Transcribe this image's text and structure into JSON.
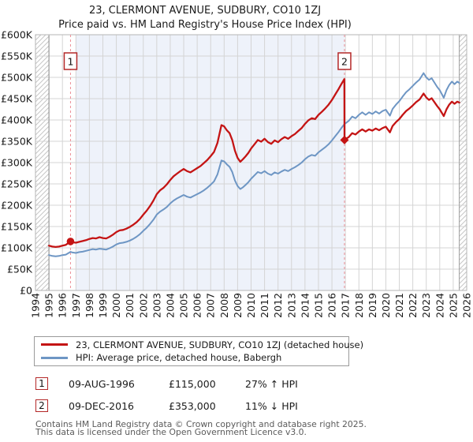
{
  "page": {
    "title": "23, CLERMONT AVENUE, SUDBURY, CO10 1ZJ",
    "subtitle": "Price paid vs. HM Land Registry's House Price Index (HPI)"
  },
  "legend": {
    "items": [
      {
        "id": "price-paid",
        "label": "23, CLERMONT AVENUE, SUDBURY, CO10 1ZJ (detached house)",
        "color": "#c41414"
      },
      {
        "id": "hpi",
        "label": "HPI: Average price, detached house, Babergh",
        "color": "#6e96c4"
      }
    ]
  },
  "sales": [
    {
      "n": "1",
      "date": "09-AUG-1996",
      "price": "£115,000",
      "hpi_diff": "27% ↑ HPI"
    },
    {
      "n": "2",
      "date": "09-DEC-2016",
      "price": "£353,000",
      "hpi_diff": "11% ↓ HPI"
    }
  ],
  "footer": {
    "line1": "Contains HM Land Registry data © Crown copyright and database right 2025.",
    "line2": "This data is licensed under the Open Government Licence v3.0."
  },
  "chart_data": {
    "type": "line",
    "title": "23, CLERMONT AVENUE, SUDBURY, CO10 1ZJ",
    "subtitle": "Price paid vs. HM Land Registry's House Price Index (HPI)",
    "unit": "GBP thousands",
    "x_axis": {
      "min": 1994,
      "max": 2026,
      "ticks": [
        "1994",
        "1995",
        "1996",
        "1997",
        "1998",
        "1999",
        "2000",
        "2001",
        "2002",
        "2003",
        "2004",
        "2005",
        "2006",
        "2007",
        "2008",
        "2009",
        "2010",
        "2011",
        "2012",
        "2013",
        "2014",
        "2015",
        "2016",
        "2017",
        "2018",
        "2019",
        "2020",
        "2021",
        "2022",
        "2023",
        "2024",
        "2025",
        "2026"
      ]
    },
    "y_axis": {
      "min": 0,
      "max": 600,
      "step": 50,
      "ticks": [
        {
          "v": 0,
          "label": "£0"
        },
        {
          "v": 50,
          "label": "£50K"
        },
        {
          "v": 100,
          "label": "£100K"
        },
        {
          "v": 150,
          "label": "£150K"
        },
        {
          "v": 200,
          "label": "£200K"
        },
        {
          "v": 250,
          "label": "£250K"
        },
        {
          "v": 300,
          "label": "£300K"
        },
        {
          "v": 350,
          "label": "£350K"
        },
        {
          "v": 400,
          "label": "£400K"
        },
        {
          "v": 450,
          "label": "£450K"
        },
        {
          "v": 500,
          "label": "£500K"
        },
        {
          "v": 550,
          "label": "£550K"
        },
        {
          "v": 600,
          "label": "£600K"
        }
      ]
    },
    "data_start_year": 1995,
    "data_end_year": 2025.45,
    "shaded_span_years": [
      1997,
      2016.93
    ],
    "no_data_spans_years": [
      [
        1994,
        1995
      ],
      [
        2025.45,
        2026.95
      ]
    ],
    "sale_markers": [
      {
        "n": "1",
        "year": 1996.6,
        "value": 115,
        "shape": "circle",
        "date": "09-AUG-1996",
        "price_gbp": 115000,
        "vs_hpi": "27% above"
      },
      {
        "n": "2",
        "year": 2016.93,
        "value": 353,
        "shape": "diamond",
        "date": "09-DEC-2016",
        "price_gbp": 353000,
        "vs_hpi": "11% below"
      }
    ],
    "style": {
      "grid": "#d4d4d4",
      "border": "#b6b6b6",
      "tint": "#eef2fa",
      "hatch": "#c6c6c6",
      "dash": "#ec8f96",
      "start_line": "#8c8c8c",
      "end_line": "#9c9c9c",
      "marker": "#c41414",
      "marker_box": "#b42828",
      "axis_text": "#1a1a1a"
    },
    "series": [
      {
        "id": "hpi",
        "name": "HPI: Average price, detached house, Babergh",
        "color": "#6e96c4",
        "width": 2,
        "points": [
          [
            1995.0,
            83
          ],
          [
            1995.25,
            81
          ],
          [
            1995.5,
            80
          ],
          [
            1995.75,
            81
          ],
          [
            1996.0,
            83
          ],
          [
            1996.25,
            84
          ],
          [
            1996.6,
            90.5
          ],
          [
            1996.75,
            89
          ],
          [
            1997.0,
            88
          ],
          [
            1997.25,
            90
          ],
          [
            1997.5,
            91
          ],
          [
            1997.75,
            93
          ],
          [
            1998.0,
            95
          ],
          [
            1998.25,
            97
          ],
          [
            1998.5,
            96
          ],
          [
            1998.75,
            98
          ],
          [
            1999.0,
            97
          ],
          [
            1999.25,
            96
          ],
          [
            1999.5,
            99
          ],
          [
            1999.75,
            103
          ],
          [
            2000.0,
            108
          ],
          [
            2000.25,
            111
          ],
          [
            2000.5,
            112
          ],
          [
            2000.75,
            114
          ],
          [
            2001.0,
            117
          ],
          [
            2001.25,
            121
          ],
          [
            2001.5,
            126
          ],
          [
            2001.75,
            132
          ],
          [
            2002.0,
            140
          ],
          [
            2002.25,
            147
          ],
          [
            2002.5,
            156
          ],
          [
            2002.75,
            166
          ],
          [
            2003.0,
            178
          ],
          [
            2003.25,
            185
          ],
          [
            2003.5,
            190
          ],
          [
            2003.75,
            196
          ],
          [
            2004.0,
            204
          ],
          [
            2004.25,
            211
          ],
          [
            2004.5,
            216
          ],
          [
            2004.75,
            220
          ],
          [
            2005.0,
            224
          ],
          [
            2005.25,
            220
          ],
          [
            2005.5,
            218
          ],
          [
            2005.75,
            222
          ],
          [
            2006.0,
            226
          ],
          [
            2006.25,
            230
          ],
          [
            2006.5,
            235
          ],
          [
            2006.75,
            241
          ],
          [
            2007.0,
            248
          ],
          [
            2007.25,
            256
          ],
          [
            2007.5,
            272
          ],
          [
            2007.8,
            305
          ],
          [
            2008.0,
            303
          ],
          [
            2008.2,
            296
          ],
          [
            2008.4,
            290
          ],
          [
            2008.6,
            278
          ],
          [
            2008.8,
            258
          ],
          [
            2009.0,
            245
          ],
          [
            2009.2,
            238
          ],
          [
            2009.4,
            242
          ],
          [
            2009.6,
            248
          ],
          [
            2009.8,
            254
          ],
          [
            2010.0,
            262
          ],
          [
            2010.25,
            270
          ],
          [
            2010.5,
            278
          ],
          [
            2010.75,
            275
          ],
          [
            2011.0,
            280
          ],
          [
            2011.25,
            274
          ],
          [
            2011.5,
            271
          ],
          [
            2011.75,
            277
          ],
          [
            2012.0,
            274
          ],
          [
            2012.25,
            279
          ],
          [
            2012.5,
            283
          ],
          [
            2012.75,
            280
          ],
          [
            2013.0,
            285
          ],
          [
            2013.25,
            289
          ],
          [
            2013.5,
            294
          ],
          [
            2013.75,
            300
          ],
          [
            2014.0,
            308
          ],
          [
            2014.25,
            314
          ],
          [
            2014.5,
            318
          ],
          [
            2014.75,
            316
          ],
          [
            2015.0,
            324
          ],
          [
            2015.25,
            330
          ],
          [
            2015.5,
            336
          ],
          [
            2015.75,
            343
          ],
          [
            2016.0,
            352
          ],
          [
            2016.25,
            362
          ],
          [
            2016.5,
            372
          ],
          [
            2016.7,
            381
          ],
          [
            2016.92,
            390
          ],
          [
            2017.0,
            392
          ],
          [
            2017.25,
            398
          ],
          [
            2017.5,
            408
          ],
          [
            2017.75,
            404
          ],
          [
            2018.0,
            412
          ],
          [
            2018.25,
            418
          ],
          [
            2018.5,
            412
          ],
          [
            2018.75,
            418
          ],
          [
            2019.0,
            414
          ],
          [
            2019.25,
            420
          ],
          [
            2019.5,
            415
          ],
          [
            2019.75,
            421
          ],
          [
            2020.0,
            424
          ],
          [
            2020.3,
            410
          ],
          [
            2020.5,
            426
          ],
          [
            2020.75,
            436
          ],
          [
            2021.0,
            444
          ],
          [
            2021.25,
            455
          ],
          [
            2021.5,
            465
          ],
          [
            2021.75,
            472
          ],
          [
            2022.0,
            480
          ],
          [
            2022.25,
            488
          ],
          [
            2022.5,
            495
          ],
          [
            2022.8,
            510
          ],
          [
            2023.0,
            500
          ],
          [
            2023.2,
            494
          ],
          [
            2023.4,
            498
          ],
          [
            2023.6,
            488
          ],
          [
            2023.8,
            478
          ],
          [
            2024.0,
            470
          ],
          [
            2024.3,
            452
          ],
          [
            2024.5,
            470
          ],
          [
            2024.7,
            482
          ],
          [
            2024.9,
            490
          ],
          [
            2025.1,
            484
          ],
          [
            2025.3,
            490
          ],
          [
            2025.45,
            487
          ]
        ]
      },
      {
        "id": "price-paid",
        "name": "23, CLERMONT AVENUE, SUDBURY, CO10 1ZJ (detached house)",
        "color": "#c41414",
        "width": 2.3,
        "points": [
          [
            1995.0,
            105
          ],
          [
            1995.25,
            103
          ],
          [
            1995.5,
            102
          ],
          [
            1995.75,
            103
          ],
          [
            1996.0,
            105
          ],
          [
            1996.25,
            107
          ],
          [
            1996.6,
            115
          ],
          [
            1996.75,
            113
          ],
          [
            1997.0,
            112
          ],
          [
            1997.25,
            114
          ],
          [
            1997.5,
            116
          ],
          [
            1997.75,
            118
          ],
          [
            1998.0,
            121
          ],
          [
            1998.25,
            123
          ],
          [
            1998.5,
            122
          ],
          [
            1998.75,
            125
          ],
          [
            1999.0,
            123
          ],
          [
            1999.25,
            122
          ],
          [
            1999.5,
            126
          ],
          [
            1999.75,
            131
          ],
          [
            2000.0,
            137
          ],
          [
            2000.25,
            141
          ],
          [
            2000.5,
            142
          ],
          [
            2000.75,
            145
          ],
          [
            2001.0,
            149
          ],
          [
            2001.25,
            154
          ],
          [
            2001.5,
            160
          ],
          [
            2001.75,
            168
          ],
          [
            2002.0,
            178
          ],
          [
            2002.25,
            187
          ],
          [
            2002.5,
            198
          ],
          [
            2002.75,
            211
          ],
          [
            2003.0,
            226
          ],
          [
            2003.25,
            235
          ],
          [
            2003.5,
            241
          ],
          [
            2003.75,
            249
          ],
          [
            2004.0,
            259
          ],
          [
            2004.25,
            268
          ],
          [
            2004.5,
            274
          ],
          [
            2004.75,
            280
          ],
          [
            2005.0,
            285
          ],
          [
            2005.25,
            280
          ],
          [
            2005.5,
            277
          ],
          [
            2005.75,
            282
          ],
          [
            2006.0,
            287
          ],
          [
            2006.25,
            292
          ],
          [
            2006.5,
            299
          ],
          [
            2006.75,
            306
          ],
          [
            2007.0,
            315
          ],
          [
            2007.25,
            325
          ],
          [
            2007.5,
            346
          ],
          [
            2007.8,
            388
          ],
          [
            2008.0,
            385
          ],
          [
            2008.2,
            376
          ],
          [
            2008.4,
            369
          ],
          [
            2008.6,
            353
          ],
          [
            2008.8,
            328
          ],
          [
            2009.0,
            311
          ],
          [
            2009.2,
            302
          ],
          [
            2009.4,
            308
          ],
          [
            2009.6,
            315
          ],
          [
            2009.8,
            323
          ],
          [
            2010.0,
            333
          ],
          [
            2010.25,
            343
          ],
          [
            2010.5,
            353
          ],
          [
            2010.75,
            349
          ],
          [
            2011.0,
            356
          ],
          [
            2011.25,
            348
          ],
          [
            2011.5,
            344
          ],
          [
            2011.75,
            352
          ],
          [
            2012.0,
            348
          ],
          [
            2012.25,
            355
          ],
          [
            2012.5,
            360
          ],
          [
            2012.75,
            356
          ],
          [
            2013.0,
            362
          ],
          [
            2013.25,
            367
          ],
          [
            2013.5,
            374
          ],
          [
            2013.75,
            381
          ],
          [
            2014.0,
            391
          ],
          [
            2014.25,
            399
          ],
          [
            2014.5,
            404
          ],
          [
            2014.75,
            402
          ],
          [
            2015.0,
            412
          ],
          [
            2015.25,
            419
          ],
          [
            2015.5,
            427
          ],
          [
            2015.75,
            436
          ],
          [
            2016.0,
            447
          ],
          [
            2016.25,
            460
          ],
          [
            2016.5,
            473
          ],
          [
            2016.7,
            484
          ],
          [
            2016.92,
            496
          ],
          [
            2016.93,
            353
          ],
          [
            2017.0,
            355
          ],
          [
            2017.25,
            360
          ],
          [
            2017.5,
            369
          ],
          [
            2017.75,
            366
          ],
          [
            2018.0,
            373
          ],
          [
            2018.25,
            378
          ],
          [
            2018.5,
            373
          ],
          [
            2018.75,
            378
          ],
          [
            2019.0,
            375
          ],
          [
            2019.25,
            380
          ],
          [
            2019.5,
            376
          ],
          [
            2019.75,
            381
          ],
          [
            2020.0,
            384
          ],
          [
            2020.3,
            371
          ],
          [
            2020.5,
            386
          ],
          [
            2020.75,
            395
          ],
          [
            2021.0,
            402
          ],
          [
            2021.25,
            412
          ],
          [
            2021.5,
            421
          ],
          [
            2021.75,
            427
          ],
          [
            2022.0,
            434
          ],
          [
            2022.25,
            442
          ],
          [
            2022.5,
            448
          ],
          [
            2022.8,
            462
          ],
          [
            2023.0,
            453
          ],
          [
            2023.2,
            447
          ],
          [
            2023.4,
            451
          ],
          [
            2023.6,
            442
          ],
          [
            2023.8,
            433
          ],
          [
            2024.0,
            425
          ],
          [
            2024.3,
            409
          ],
          [
            2024.5,
            425
          ],
          [
            2024.7,
            436
          ],
          [
            2024.9,
            443
          ],
          [
            2025.1,
            438
          ],
          [
            2025.3,
            443
          ],
          [
            2025.45,
            441
          ]
        ]
      }
    ]
  }
}
